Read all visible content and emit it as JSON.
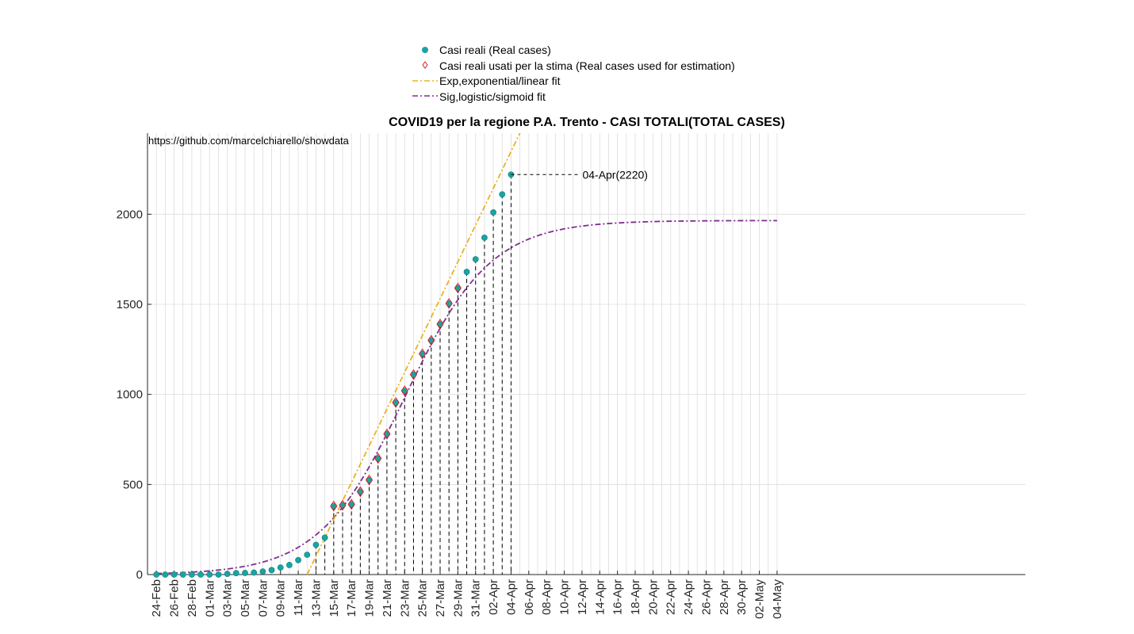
{
  "chart_data": {
    "type": "scatter",
    "title": "COVID19 per la regione P.A. Trento - CASI TOTALI(TOTAL CASES)",
    "source_text": "https://github.com/marcelchiarello/showdata",
    "xlabel": "",
    "ylabel": "",
    "ylim": [
      0,
      2450
    ],
    "yticks": [
      0,
      500,
      1000,
      1500,
      2000
    ],
    "x_start_date": "2020-02-24",
    "x_end_date": "2020-05-04",
    "x_range": [
      "2020-02-23",
      "2020-06-01"
    ],
    "xticks": [
      "24-Feb",
      "26-Feb",
      "28-Feb",
      "01-Mar",
      "03-Mar",
      "05-Mar",
      "07-Mar",
      "09-Mar",
      "11-Mar",
      "13-Mar",
      "15-Mar",
      "17-Mar",
      "19-Mar",
      "21-Mar",
      "23-Mar",
      "25-Mar",
      "27-Mar",
      "29-Mar",
      "31-Mar",
      "02-Apr",
      "04-Apr",
      "06-Apr",
      "08-Apr",
      "10-Apr",
      "12-Apr",
      "14-Apr",
      "16-Apr",
      "18-Apr",
      "20-Apr",
      "22-Apr",
      "24-Apr",
      "26-Apr",
      "28-Apr",
      "30-Apr",
      "02-May",
      "04-May"
    ],
    "grid": true,
    "legend_position": "top",
    "series": [
      {
        "name": "Casi reali (Real cases)",
        "kind": "marker-circle",
        "color": "#1aa3a3",
        "x": [
          "2020-02-24",
          "2020-02-25",
          "2020-02-26",
          "2020-02-27",
          "2020-02-28",
          "2020-02-29",
          "2020-03-01",
          "2020-03-02",
          "2020-03-03",
          "2020-03-04",
          "2020-03-05",
          "2020-03-06",
          "2020-03-07",
          "2020-03-08",
          "2020-03-09",
          "2020-03-10",
          "2020-03-11",
          "2020-03-12",
          "2020-03-13",
          "2020-03-14",
          "2020-03-15",
          "2020-03-16",
          "2020-03-17",
          "2020-03-18",
          "2020-03-19",
          "2020-03-20",
          "2020-03-21",
          "2020-03-22",
          "2020-03-23",
          "2020-03-24",
          "2020-03-25",
          "2020-03-26",
          "2020-03-27",
          "2020-03-28",
          "2020-03-29",
          "2020-03-30",
          "2020-03-31",
          "2020-04-01",
          "2020-04-02",
          "2020-04-03",
          "2020-04-04"
        ],
        "y": [
          0,
          0,
          0,
          0,
          0,
          0,
          0,
          0,
          4,
          8,
          9,
          11,
          17,
          25,
          39,
          53,
          80,
          110,
          165,
          205,
          380,
          385,
          390,
          460,
          525,
          645,
          780,
          955,
          1020,
          1110,
          1225,
          1300,
          1390,
          1505,
          1590,
          1680,
          1750,
          1870,
          2010,
          2110,
          2220
        ]
      },
      {
        "name": "Casi reali usati per la stima (Real cases used for estimation)",
        "kind": "marker-diamond",
        "color": "#e02020",
        "x": [
          "2020-03-15",
          "2020-03-16",
          "2020-03-17",
          "2020-03-18",
          "2020-03-19",
          "2020-03-20",
          "2020-03-21",
          "2020-03-22",
          "2020-03-23",
          "2020-03-24",
          "2020-03-25",
          "2020-03-26",
          "2020-03-27",
          "2020-03-28",
          "2020-03-29"
        ],
        "y": [
          380,
          385,
          390,
          460,
          525,
          645,
          780,
          955,
          1020,
          1110,
          1225,
          1300,
          1390,
          1505,
          1590
        ]
      },
      {
        "name": "Exp,exponential/linear fit",
        "kind": "line-dashdot",
        "color": "#edb120",
        "x": [
          "2020-03-12",
          "2020-04-05"
        ],
        "y": [
          0,
          2450
        ]
      },
      {
        "name": "Sig,logistic/sigmoid fit",
        "kind": "line-dashdot",
        "color": "#7e2f8e",
        "params": {
          "K": 1965,
          "r": 0.207,
          "t0": "2020-03-23"
        },
        "x_range": [
          "2020-02-24",
          "2020-05-04"
        ]
      }
    ],
    "annotations": [
      {
        "text": "04-Apr(2220)",
        "x": "2020-04-04",
        "y": 2220
      }
    ]
  }
}
